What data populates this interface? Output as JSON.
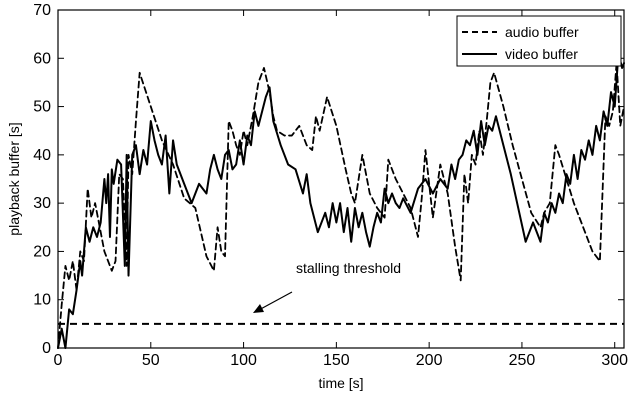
{
  "chart_data": {
    "type": "line",
    "title": "",
    "xlabel": "time [s]",
    "ylabel": "playback buffer [s]",
    "xlim": [
      0,
      305
    ],
    "ylim": [
      0,
      70
    ],
    "x_ticks": [
      0,
      50,
      100,
      150,
      200,
      250,
      300
    ],
    "y_ticks": [
      0,
      10,
      20,
      30,
      40,
      50,
      60,
      70
    ],
    "grid": false,
    "legend_position": "top-right",
    "series": [
      {
        "name": "audio buffer",
        "style": "dashed",
        "color": "#000000",
        "x": [
          0,
          2,
          4,
          6,
          8,
          10,
          12,
          14,
          16,
          18,
          20,
          22,
          25,
          27,
          29,
          31,
          33,
          35,
          37,
          38,
          40,
          42,
          44,
          50,
          56,
          62,
          68,
          74,
          80,
          84,
          86,
          88,
          90,
          92,
          94,
          96,
          98,
          100,
          102,
          105,
          108,
          111,
          114,
          116,
          118,
          122,
          126,
          130,
          134,
          137,
          139,
          141,
          145,
          150,
          155,
          158,
          160,
          164,
          168,
          172,
          176,
          178,
          182,
          186,
          190,
          194,
          196,
          198,
          202,
          206,
          210,
          214,
          217,
          219,
          221,
          223,
          225,
          227,
          229,
          231,
          233,
          235,
          240,
          245,
          250,
          255,
          260,
          262,
          265,
          268,
          270,
          274,
          278,
          283,
          288,
          292,
          295,
          297,
          299,
          301,
          303,
          305
        ],
        "y": [
          0,
          9,
          17,
          14,
          18,
          12,
          20,
          18,
          33,
          27,
          30,
          26,
          20,
          18,
          16,
          18,
          36,
          35,
          17,
          40,
          36,
          47,
          57,
          50,
          43,
          38,
          31,
          29,
          19,
          16,
          25,
          20,
          19,
          47,
          45,
          42,
          40,
          45,
          42,
          48,
          55,
          58,
          53,
          48,
          45,
          44,
          44,
          46,
          42,
          41,
          48,
          45,
          52,
          46,
          37,
          32,
          30,
          40,
          32,
          29,
          27,
          39,
          35,
          32,
          29,
          23,
          31,
          41,
          27,
          38,
          32,
          21,
          14,
          36,
          30,
          40,
          38,
          45,
          40,
          47,
          55,
          57,
          50,
          42,
          35,
          28,
          25,
          28,
          30,
          42,
          40,
          35,
          30,
          25,
          20,
          18,
          48,
          46,
          49,
          59,
          46,
          50
        ]
      },
      {
        "name": "video buffer",
        "style": "solid",
        "color": "#000000",
        "x": [
          0,
          2,
          4,
          6,
          8,
          10,
          12,
          13,
          15,
          17,
          19,
          21,
          23,
          25,
          26,
          27,
          28,
          29,
          30,
          32,
          34,
          36,
          37,
          38,
          40,
          42,
          44,
          46,
          48,
          50,
          52,
          54,
          56,
          58,
          60,
          62,
          64,
          68,
          72,
          76,
          80,
          82,
          84,
          86,
          88,
          90,
          92,
          94,
          96,
          98,
          100,
          102,
          104,
          106,
          108,
          110,
          112,
          114,
          116,
          120,
          124,
          128,
          132,
          134,
          136,
          140,
          144,
          146,
          148,
          150,
          152,
          154,
          156,
          158,
          160,
          162,
          164,
          166,
          168,
          170,
          172,
          174,
          176,
          178,
          180,
          182,
          184,
          186,
          190,
          194,
          198,
          202,
          206,
          210,
          212,
          214,
          216,
          218,
          220,
          222,
          224,
          226,
          228,
          230,
          232,
          234,
          236,
          240,
          244,
          248,
          252,
          256,
          260,
          262,
          264,
          266,
          268,
          270,
          272,
          274,
          276,
          278,
          280,
          282,
          284,
          286,
          288,
          290,
          292,
          294,
          296,
          298,
          300,
          302,
          304,
          305
        ],
        "y": [
          0,
          4,
          0,
          8,
          7,
          12,
          18,
          15,
          25,
          22,
          25,
          23,
          26,
          35,
          30,
          36,
          23,
          37,
          34,
          39,
          38,
          17,
          40,
          15,
          40,
          42,
          36,
          41,
          38,
          47,
          43,
          40,
          38,
          44,
          32,
          43,
          38,
          34,
          30,
          34,
          32,
          37,
          40,
          37,
          35,
          40,
          41,
          37,
          38,
          43,
          38,
          44,
          42,
          49,
          46,
          49,
          52,
          54,
          47,
          42,
          38,
          37,
          32,
          36,
          30,
          24,
          28,
          25,
          30,
          26,
          30,
          24,
          29,
          22,
          29,
          25,
          28,
          24,
          21,
          25,
          28,
          26,
          33,
          30,
          32,
          30,
          29,
          31,
          28,
          33,
          35,
          32,
          35,
          33,
          38,
          35,
          39,
          40,
          43,
          42,
          45,
          40,
          47,
          42,
          46,
          45,
          48,
          42,
          36,
          29,
          22,
          26,
          22,
          28,
          26,
          30,
          28,
          32,
          30,
          36,
          34,
          40,
          35,
          41,
          39,
          43,
          40,
          46,
          43,
          49,
          46,
          53,
          50,
          61,
          58,
          59
        ]
      }
    ],
    "reference_lines": [
      {
        "y": 5,
        "style": "dashed",
        "label": "stalling threshold"
      }
    ]
  }
}
